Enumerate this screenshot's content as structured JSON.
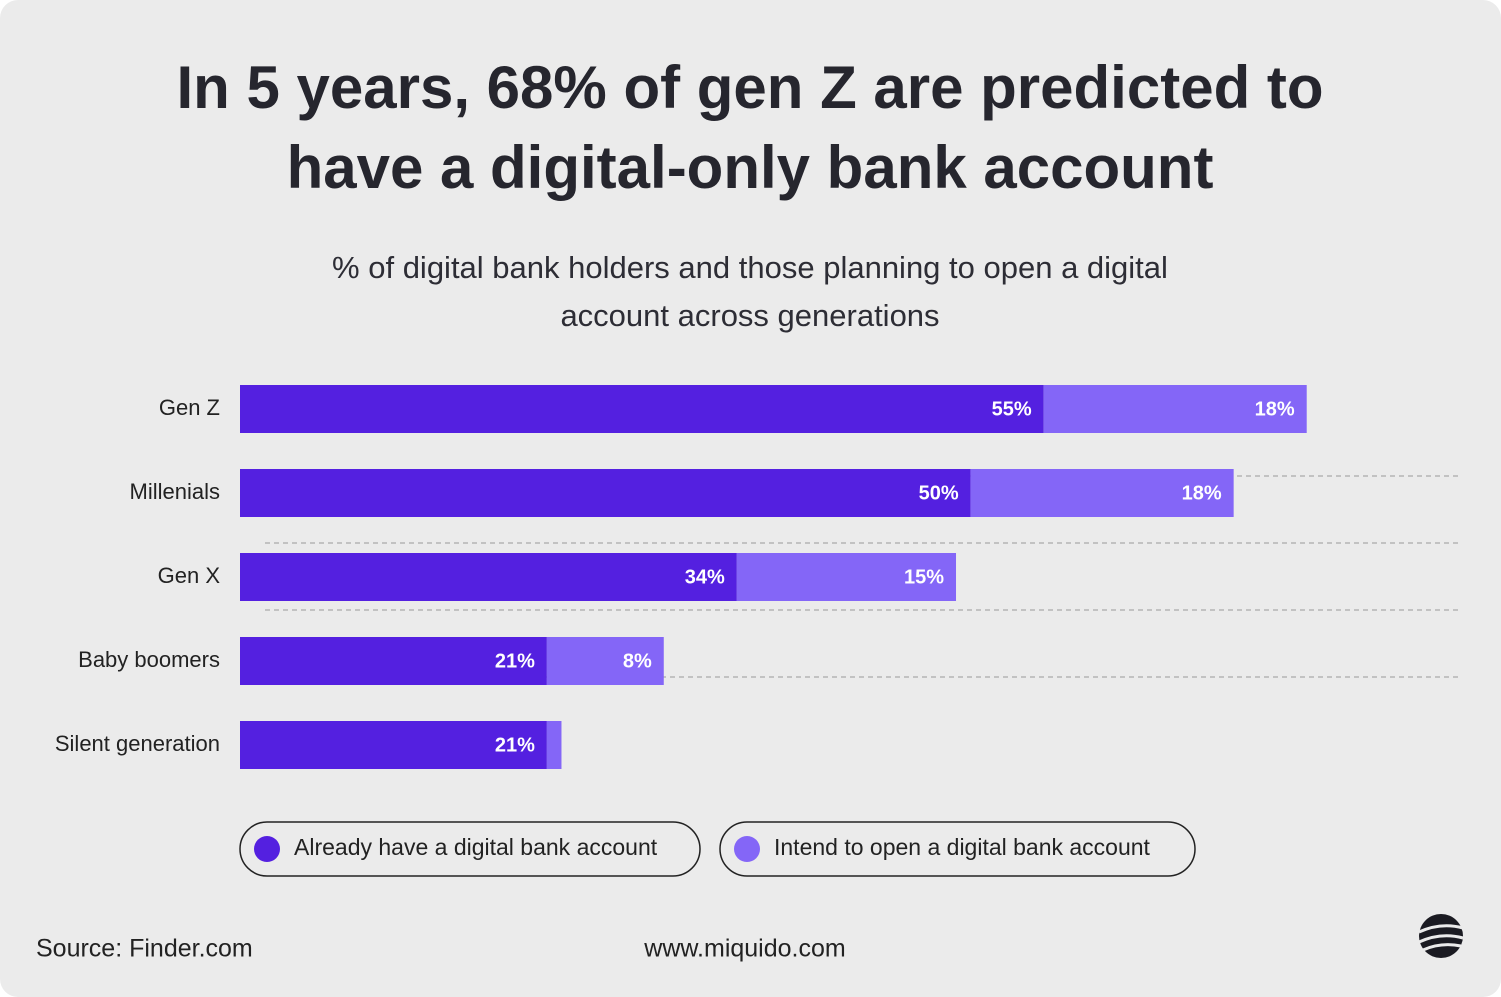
{
  "chart_data": {
    "type": "stacked-bar-horizontal",
    "title": "In 5 years, 68% of gen Z are predicted to have a digital-only bank account",
    "subtitle": "% of digital bank holders and those planning to open a digital account across generations",
    "categories": [
      "Gen Z",
      "Millenials",
      "Gen X",
      "Baby boomers",
      "Silent generation"
    ],
    "series": [
      {
        "name": "Already have a digital bank account",
        "color": "#5420e0",
        "values": [
          55,
          50,
          34,
          21,
          21
        ],
        "value_labels": [
          "55%",
          "50%",
          "34%",
          "21%",
          "21%"
        ]
      },
      {
        "name": "Intend to open a digital bank account",
        "color": "#8466f7",
        "values": [
          18,
          18,
          15,
          8,
          1
        ],
        "value_labels": [
          "18%",
          "18%",
          "15%",
          "8%",
          null
        ]
      }
    ],
    "xlim": [
      0,
      80
    ],
    "source": "Source: Finder.com",
    "website": "www.miquido.com"
  }
}
